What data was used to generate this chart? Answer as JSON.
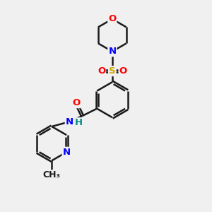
{
  "background_color": "#f0f0f0",
  "bond_color": "#1a1a1a",
  "bond_width": 1.8,
  "dbo": 0.055,
  "colors": {
    "O": "#ff0000",
    "N": "#0000ff",
    "S": "#ccaa00",
    "H": "#008b8b",
    "C": "#1a1a1a"
  },
  "fs": 9.5
}
